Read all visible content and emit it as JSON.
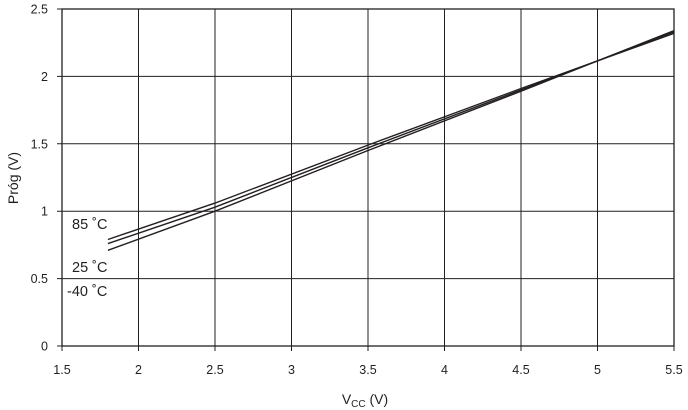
{
  "chart_data": {
    "type": "line",
    "xlabel": "V",
    "xlabel_sub": "CC",
    "xlabel_unit": " (V)",
    "ylabel": "Próg (V)",
    "xlim": [
      1.5,
      5.5
    ],
    "ylim": [
      0,
      2.5
    ],
    "x_ticks": [
      "1.5",
      "2",
      "2.5",
      "3",
      "3.5",
      "4",
      "4.5",
      "5",
      "5.5"
    ],
    "y_ticks": [
      "0",
      "0.5",
      "1",
      "1.5",
      "2",
      "2.5"
    ],
    "grid": true,
    "series": [
      {
        "name": "85 °C",
        "label_text": "85 ˚C",
        "x": [
          1.8,
          2.5,
          3.5,
          4.5,
          5.5
        ],
        "y": [
          0.79,
          1.06,
          1.49,
          1.91,
          2.32
        ]
      },
      {
        "name": "25 °C",
        "label_text": "25 ˚C",
        "x": [
          1.8,
          2.5,
          3.5,
          4.5,
          5.5
        ],
        "y": [
          0.76,
          1.03,
          1.47,
          1.9,
          2.33
        ]
      },
      {
        "name": "-40 °C",
        "label_text": "-40 ˚C",
        "x": [
          1.8,
          2.5,
          3.5,
          4.5,
          5.5
        ],
        "y": [
          0.71,
          1.0,
          1.45,
          1.89,
          2.34
        ]
      }
    ]
  }
}
